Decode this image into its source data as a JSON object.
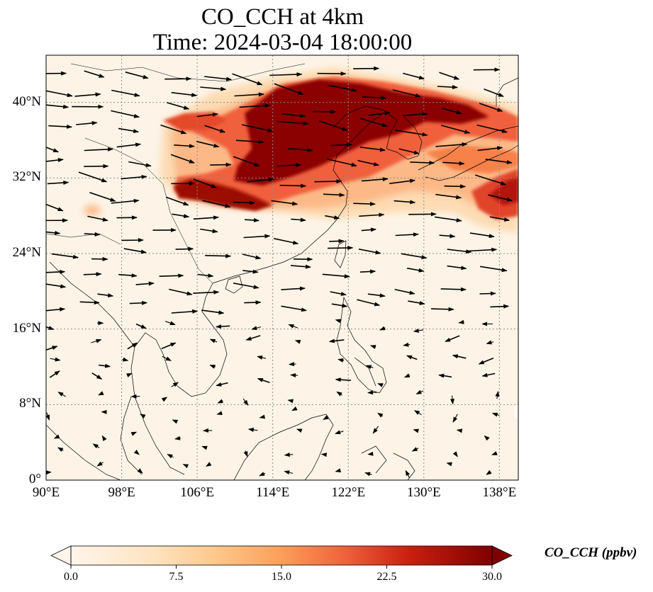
{
  "title": {
    "line1": "CO_CCH at 4km",
    "line2": "Time: 2024-03-04 18:00:00"
  },
  "map": {
    "variable": "CO_CCH",
    "height": "4km",
    "time": "2024-03-04 18:00:00",
    "lon_range": [
      90,
      140
    ],
    "lat_range": [
      0,
      45
    ],
    "gridlines": true,
    "gridline_style": "dotted",
    "overlay": "wind vectors (arrows)",
    "xticks": [
      "90°E",
      "98°E",
      "106°E",
      "114°E",
      "122°E",
      "130°E",
      "138°E"
    ],
    "yticks": [
      "0°",
      "8°N",
      "16°N",
      "24°N",
      "32°N",
      "40°N"
    ],
    "colors": {
      "background": "#fdf4e7",
      "low": "#fff5eb",
      "mid": "#f4834f",
      "high": "#8b0000",
      "coastline": "#000000",
      "gridline": "#8a8a8a"
    }
  },
  "colorbar": {
    "label": "CO_CCH (ppbv)",
    "ticks": [
      "0.0",
      "7.5",
      "15.0",
      "22.5",
      "30.0"
    ],
    "range": [
      0,
      30
    ],
    "extend": "both",
    "cmap": "OrRd"
  }
}
